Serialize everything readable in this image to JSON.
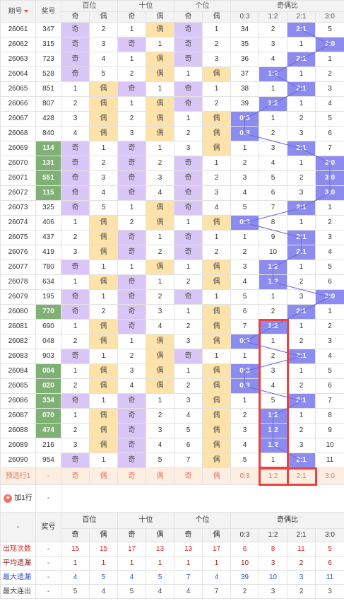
{
  "header": {
    "period_label": "期号",
    "number_label": "奖号",
    "groups": [
      "百位",
      "十位",
      "个位",
      "奇偶比"
    ],
    "sub": [
      "奇",
      "偶",
      "奇",
      "偶",
      "奇",
      "偶",
      "0:3",
      "1:2",
      "2:1",
      "3:0"
    ]
  },
  "rows": [
    {
      "p": "26061",
      "n": "347",
      "hl": false,
      "b": [
        "奇",
        "2"
      ],
      "s": [
        "1",
        "偶"
      ],
      "g": [
        "奇",
        "1"
      ],
      "r": [
        "34",
        "2",
        "2:1",
        "5"
      ],
      "w": 2
    },
    {
      "p": "26062",
      "n": "315",
      "hl": false,
      "b": [
        "奇",
        "3"
      ],
      "s": [
        "奇",
        "1"
      ],
      "g": [
        "奇",
        "2"
      ],
      "r": [
        "35",
        "3",
        "1",
        "3:0"
      ],
      "w": 3
    },
    {
      "p": "26063",
      "n": "723",
      "hl": false,
      "b": [
        "奇",
        "4"
      ],
      "s": [
        "1",
        "偶"
      ],
      "g": [
        "奇",
        "3"
      ],
      "r": [
        "36",
        "4",
        "2:1",
        "1"
      ],
      "w": 2
    },
    {
      "p": "26064",
      "n": "528",
      "hs": false,
      "b": [
        "奇",
        "5"
      ],
      "s": [
        "2",
        "偶"
      ],
      "g": [
        "1",
        "偶"
      ],
      "r": [
        "37",
        "1:2",
        "1",
        "2"
      ],
      "w": 1
    },
    {
      "p": "26065",
      "n": "851",
      "hl": false,
      "b": [
        "1",
        "偶"
      ],
      "s": [
        "奇",
        "1"
      ],
      "g": [
        "奇",
        "1"
      ],
      "r": [
        "38",
        "1",
        "2:1",
        "3"
      ],
      "w": 2
    },
    {
      "p": "26066",
      "n": "807",
      "hl": false,
      "b": [
        "2",
        "偶"
      ],
      "s": [
        "1",
        "偶"
      ],
      "g": [
        "奇",
        "2"
      ],
      "r": [
        "39",
        "1:2",
        "1",
        "4"
      ],
      "w": 1
    },
    {
      "p": "26067",
      "n": "428",
      "hl": false,
      "b": [
        "3",
        "偶"
      ],
      "s": [
        "2",
        "偶"
      ],
      "g": [
        "1",
        "偶"
      ],
      "r": [
        "0:3",
        "1",
        "2",
        "5"
      ],
      "w": 0
    },
    {
      "p": "26068",
      "n": "840",
      "hl": false,
      "b": [
        "4",
        "偶"
      ],
      "s": [
        "3",
        "偶"
      ],
      "g": [
        "2",
        "偶"
      ],
      "r": [
        "0:3",
        "2",
        "3",
        "6"
      ],
      "w": 0
    },
    {
      "p": "26069",
      "n": "114",
      "hl": true,
      "b": [
        "奇",
        "1"
      ],
      "s": [
        "奇",
        "1"
      ],
      "g": [
        "3",
        "偶"
      ],
      "r": [
        "1",
        "3",
        "2:1",
        "7"
      ],
      "w": 2
    },
    {
      "p": "26070",
      "n": "131",
      "hl": true,
      "b": [
        "奇",
        "2"
      ],
      "s": [
        "奇",
        "2"
      ],
      "g": [
        "奇",
        "1"
      ],
      "r": [
        "2",
        "4",
        "1",
        "3:0"
      ],
      "w": 3
    },
    {
      "p": "26071",
      "n": "551",
      "hl": true,
      "b": [
        "奇",
        "3"
      ],
      "s": [
        "奇",
        "3"
      ],
      "g": [
        "奇",
        "2"
      ],
      "r": [
        "3",
        "5",
        "2",
        "3:0"
      ],
      "w": 3
    },
    {
      "p": "26072",
      "n": "115",
      "hl": true,
      "b": [
        "奇",
        "4"
      ],
      "s": [
        "奇",
        "4"
      ],
      "g": [
        "奇",
        "3"
      ],
      "r": [
        "4",
        "6",
        "3",
        "3:0"
      ],
      "w": 3
    },
    {
      "p": "26073",
      "n": "325",
      "hl": false,
      "b": [
        "奇",
        "5"
      ],
      "s": [
        "1",
        "偶"
      ],
      "g": [
        "奇",
        "4"
      ],
      "r": [
        "5",
        "7",
        "2:1",
        "1"
      ],
      "w": 2
    },
    {
      "p": "26074",
      "n": "406",
      "hl": false,
      "b": [
        "1",
        "偶"
      ],
      "s": [
        "2",
        "偶"
      ],
      "g": [
        "1",
        "偶"
      ],
      "r": [
        "0:3",
        "8",
        "1",
        "2"
      ],
      "w": 0
    },
    {
      "p": "26075",
      "n": "437",
      "hl": false,
      "b": [
        "2",
        "偶"
      ],
      "s": [
        "奇",
        "1"
      ],
      "g": [
        "奇",
        "1"
      ],
      "r": [
        "1",
        "9",
        "2:1",
        "3"
      ],
      "w": 2
    },
    {
      "p": "26076",
      "n": "419",
      "hl": false,
      "b": [
        "3",
        "偶"
      ],
      "s": [
        "奇",
        "2"
      ],
      "g": [
        "奇",
        "2"
      ],
      "r": [
        "2",
        "10",
        "2:1",
        "4"
      ],
      "w": 2
    },
    {
      "p": "26077",
      "n": "780",
      "hl": false,
      "b": [
        "奇",
        "1"
      ],
      "s": [
        "1",
        "偶"
      ],
      "g": [
        "1",
        "偶"
      ],
      "r": [
        "3",
        "1:2",
        "1",
        "5"
      ],
      "w": 1
    },
    {
      "p": "26078",
      "n": "634",
      "hl": false,
      "b": [
        "1",
        "偶"
      ],
      "s": [
        "奇",
        "1"
      ],
      "g": [
        "2",
        "偶"
      ],
      "r": [
        "4",
        "1:2",
        "2",
        "6"
      ],
      "w": 1
    },
    {
      "p": "26079",
      "n": "195",
      "hl": false,
      "b": [
        "奇",
        "1"
      ],
      "s": [
        "奇",
        "2"
      ],
      "g": [
        "奇",
        "1"
      ],
      "r": [
        "5",
        "1",
        "3",
        "3:0"
      ],
      "w": 3
    },
    {
      "p": "26080",
      "n": "770",
      "hl": true,
      "b": [
        "奇",
        "2"
      ],
      "s": [
        "奇",
        "3"
      ],
      "g": [
        "1",
        "偶"
      ],
      "r": [
        "6",
        "2",
        "2:1",
        "1"
      ],
      "w": 2
    },
    {
      "p": "26081",
      "n": "690",
      "hl": false,
      "b": [
        "1",
        "偶"
      ],
      "s": [
        "奇",
        "4"
      ],
      "g": [
        "2",
        "偶"
      ],
      "r": [
        "7",
        "1:2",
        "1",
        "2"
      ],
      "w": 1
    },
    {
      "p": "26082",
      "n": "048",
      "hl": false,
      "b": [
        "2",
        "偶"
      ],
      "s": [
        "1",
        "偶"
      ],
      "g": [
        "3",
        "偶"
      ],
      "r": [
        "0:3",
        "1",
        "2",
        "3"
      ],
      "w": 0
    },
    {
      "p": "26083",
      "n": "903",
      "hl": false,
      "b": [
        "奇",
        "1"
      ],
      "s": [
        "2",
        "偶"
      ],
      "g": [
        "奇",
        "1"
      ],
      "r": [
        "1",
        "2",
        "2:1",
        "4"
      ],
      "w": 2
    },
    {
      "p": "26084",
      "n": "004",
      "hl": true,
      "b": [
        "1",
        "偶"
      ],
      "s": [
        "3",
        "偶"
      ],
      "g": [
        "1",
        "偶"
      ],
      "r": [
        "0:3",
        "3",
        "1",
        "5"
      ],
      "w": 0
    },
    {
      "p": "26085",
      "n": "020",
      "hl": true,
      "b": [
        "2",
        "偶"
      ],
      "s": [
        "4",
        "偶"
      ],
      "g": [
        "2",
        "偶"
      ],
      "r": [
        "0:3",
        "4",
        "2",
        "6"
      ],
      "w": 0
    },
    {
      "p": "26086",
      "n": "334",
      "hl": true,
      "b": [
        "奇",
        "1"
      ],
      "s": [
        "奇",
        "1"
      ],
      "g": [
        "3",
        "偶"
      ],
      "r": [
        "1",
        "5",
        "2:1",
        "7"
      ],
      "w": 2
    },
    {
      "p": "26087",
      "n": "070",
      "hl": true,
      "b": [
        "1",
        "偶"
      ],
      "s": [
        "奇",
        "2"
      ],
      "g": [
        "4",
        "偶"
      ],
      "r": [
        "2",
        "1:2",
        "1",
        "8"
      ],
      "w": 1
    },
    {
      "p": "26088",
      "n": "474",
      "hl": true,
      "b": [
        "2",
        "偶"
      ],
      "s": [
        "奇",
        "3"
      ],
      "g": [
        "5",
        "偶"
      ],
      "r": [
        "3",
        "1:2",
        "2",
        "9"
      ],
      "w": 1
    },
    {
      "p": "26089",
      "n": "216",
      "hl": false,
      "b": [
        "3",
        "偶"
      ],
      "s": [
        "奇",
        "4"
      ],
      "g": [
        "6",
        "偶"
      ],
      "r": [
        "4",
        "1:2",
        "3",
        "10"
      ],
      "w": 1
    },
    {
      "p": "26090",
      "n": "954",
      "hl": false,
      "b": [
        "奇",
        "1"
      ],
      "s": [
        "奇",
        "5"
      ],
      "g": [
        "7",
        "偶"
      ],
      "r": [
        "5",
        "1",
        "2:1",
        "11"
      ],
      "w": 2
    }
  ],
  "predict": {
    "label": "预选行1",
    "n": "-",
    "cells": [
      "奇",
      "偶",
      "奇",
      "偶",
      "奇",
      "偶",
      "0:3",
      "1:2",
      "2:1",
      "3:0"
    ]
  },
  "add_row": {
    "label": "加1行",
    "value": "-"
  },
  "footer_head": {
    "dash": "-",
    "number_label": "奖号",
    "groups": [
      "百位",
      "十位",
      "个位",
      "奇偶比"
    ],
    "sub": [
      "奇",
      "偶",
      "奇",
      "偶",
      "奇",
      "偶",
      "0:3",
      "1:2",
      "2:1",
      "3:0"
    ]
  },
  "stats": [
    {
      "label": "出现次数",
      "n": "-",
      "v": [
        "15",
        "15",
        "17",
        "13",
        "13",
        "17",
        "6",
        "8",
        "11",
        "5"
      ],
      "cls": "s-red"
    },
    {
      "label": "平均遗漏",
      "n": "-",
      "v": [
        "1",
        "1",
        "1",
        "1",
        "1",
        "1",
        "10",
        "3",
        "2",
        "6"
      ],
      "cls": "s-dk"
    },
    {
      "label": "最大遗漏",
      "n": "-",
      "v": [
        "4",
        "5",
        "4",
        "5",
        "7",
        "4",
        "39",
        "10",
        "3",
        "11"
      ],
      "cls": "s-bl"
    },
    {
      "label": "最大连出",
      "n": "-",
      "v": [
        "5",
        "4",
        "5",
        "4",
        "4",
        "7",
        "2",
        "3",
        "2",
        "3"
      ],
      "cls": "s-gy"
    }
  ]
}
